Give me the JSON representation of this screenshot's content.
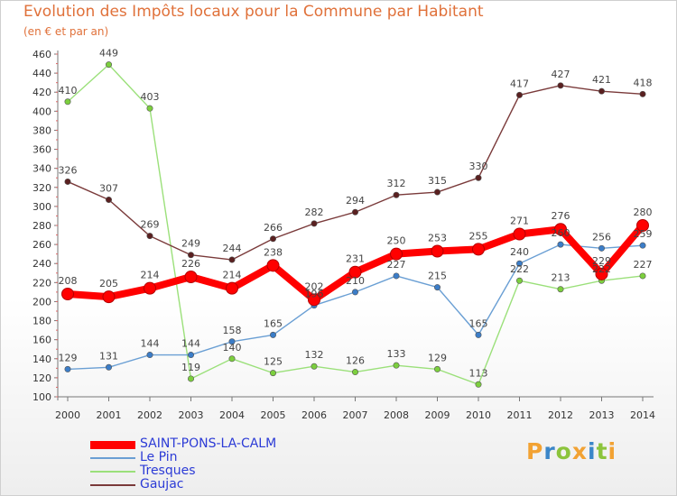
{
  "page": {
    "title": "Evolution des Impôts locaux pour la Commune par Habitant",
    "subtitle": "(en € et par an)",
    "logo": "Proxiti"
  },
  "chart_data": {
    "type": "line",
    "title": "Evolution des Impôts locaux pour la Commune par Habitant",
    "subtitle": "(en € et par an)",
    "x": [
      "2000",
      "2001",
      "2002",
      "2003",
      "2004",
      "2005",
      "2006",
      "2007",
      "2008",
      "2009",
      "2010",
      "2011",
      "2012",
      "2013",
      "2014"
    ],
    "ylim": [
      100,
      460
    ],
    "yticks": [
      100,
      120,
      140,
      160,
      180,
      200,
      220,
      240,
      260,
      280,
      300,
      320,
      340,
      360,
      380,
      400,
      420,
      440,
      460
    ],
    "grid": false,
    "legend_position": "bottom-left",
    "series": [
      {
        "name": "SAINT-PONS-LA-CALM",
        "color": "#ff0000",
        "emphasis": true,
        "values": [
          208,
          205,
          214,
          226,
          214,
          238,
          202,
          231,
          250,
          253,
          255,
          271,
          276,
          229,
          280
        ],
        "labels": [
          "208",
          "205",
          "214",
          "226",
          "214",
          "238",
          "202",
          "231",
          "250",
          "253",
          "255",
          "271",
          "276",
          "229",
          "280"
        ]
      },
      {
        "name": "Le Pin",
        "color": "#6a9fd4",
        "marker_color": "#3b7dc8",
        "values": [
          129,
          131,
          144,
          144,
          158,
          165,
          196,
          210,
          227,
          215,
          165,
          240,
          260,
          256,
          259
        ],
        "labels": [
          "129",
          "131",
          "144",
          "144",
          "158",
          "165",
          "196",
          "210",
          "227",
          "215",
          "165",
          "240",
          "260",
          "256",
          "259"
        ]
      },
      {
        "name": "Tresques",
        "color": "#9be07a",
        "marker_color": "#7ccf3e",
        "values": [
          410,
          449,
          403,
          119,
          140,
          125,
          132,
          126,
          133,
          129,
          113,
          222,
          213,
          222,
          227
        ],
        "labels": [
          "410",
          "449",
          "403",
          "119",
          "140",
          "125",
          "132",
          "126",
          "133",
          "129",
          "113",
          "222",
          "213",
          "222",
          "227"
        ]
      },
      {
        "name": "Gaujac",
        "color": "#7a3a3a",
        "marker_color": "#5a2020",
        "values": [
          326,
          307,
          269,
          249,
          244,
          266,
          282,
          294,
          312,
          315,
          330,
          417,
          427,
          421,
          418
        ],
        "labels": [
          "326",
          "307",
          "269",
          "249",
          "244",
          "266",
          "282",
          "294",
          "312",
          "315",
          "330",
          "417",
          "427",
          "421",
          "418"
        ]
      }
    ]
  }
}
